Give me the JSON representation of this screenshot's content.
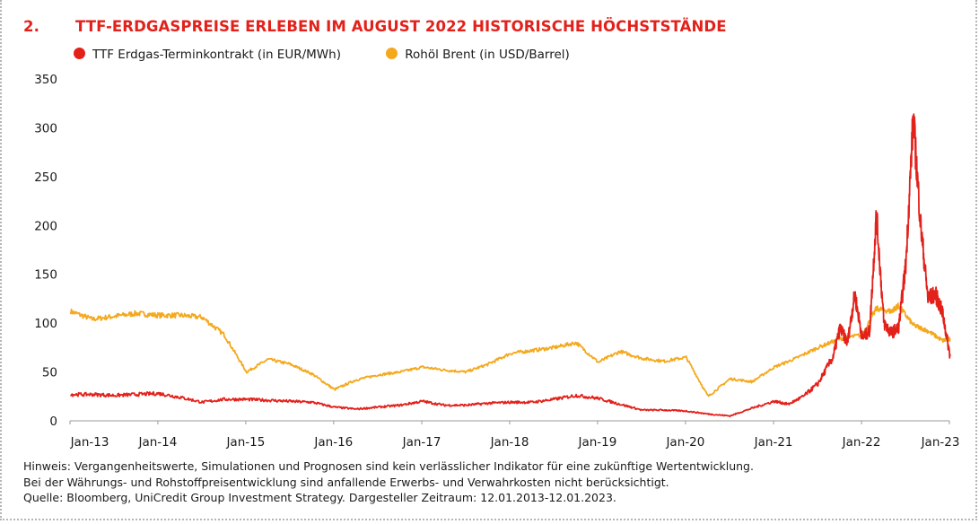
{
  "header": {
    "number": "2.",
    "title": "TTF-ERDGASPREISE ERLEBEN IM AUGUST 2022 HISTORISCHE HÖCHSTSTÄNDE"
  },
  "notes": [
    "Hinweis: Vergangenheitswerte, Simulationen und Prognosen sind kein verlässlicher Indikator für eine zukünftige Wertentwicklung.",
    "Bei der Währungs- und Rohstoffpreisentwicklung sind anfallende Erwerbs- und Verwahrkosten nicht berücksichtigt.",
    "Quelle: Bloomberg, UniCredit Group Investment Strategy. Dargesteller Zeitraum: 12.01.2013-12.01.2023."
  ],
  "chart_data": {
    "type": "line",
    "title": "TTF-ERDGASPREISE ERLEBEN IM AUGUST 2022 HISTORISCHE HÖCHSTSTÄNDE",
    "xlabel": "",
    "ylabel": "",
    "x_range": [
      "2013-01-12",
      "2023-01-12"
    ],
    "ylim": [
      0,
      350
    ],
    "yticks": [
      0,
      50,
      100,
      150,
      200,
      250,
      300,
      350
    ],
    "xtick_labels": [
      "Jan-13",
      "Jan-14",
      "Jan-15",
      "Jan-16",
      "Jan-17",
      "Jan-18",
      "Jan-19",
      "Jan-20",
      "Jan-21",
      "Jan-22",
      "Jan-23"
    ],
    "grid": false,
    "legend_position": "top-left",
    "series": [
      {
        "name": "TTF Erdgas-Terminkontrakt (in EUR/MWh)",
        "color": "#e3211b",
        "x": [
          "2013-01",
          "2013-04",
          "2013-07",
          "2013-10",
          "2014-01",
          "2014-04",
          "2014-07",
          "2014-10",
          "2015-01",
          "2015-04",
          "2015-07",
          "2015-10",
          "2016-01",
          "2016-04",
          "2016-07",
          "2016-10",
          "2017-01",
          "2017-04",
          "2017-07",
          "2017-10",
          "2018-01",
          "2018-04",
          "2018-07",
          "2018-10",
          "2019-01",
          "2019-04",
          "2019-07",
          "2019-10",
          "2020-01",
          "2020-04",
          "2020-07",
          "2020-10",
          "2021-01",
          "2021-03",
          "2021-05",
          "2021-07",
          "2021-09",
          "2021-10",
          "2021-11",
          "2021-12",
          "2022-01",
          "2022-02",
          "2022-03",
          "2022-04",
          "2022-05",
          "2022-06",
          "2022-07",
          "2022-08",
          "2022-09",
          "2022-10",
          "2022-11",
          "2022-12",
          "2023-01"
        ],
        "values": [
          27,
          27,
          26,
          27,
          28,
          24,
          19,
          22,
          22,
          21,
          20,
          19,
          14,
          12,
          14,
          16,
          20,
          16,
          16,
          18,
          19,
          19,
          22,
          26,
          23,
          17,
          11,
          11,
          10,
          7,
          5,
          13,
          20,
          17,
          25,
          38,
          65,
          95,
          80,
          130,
          85,
          92,
          212,
          100,
          90,
          95,
          160,
          310,
          200,
          125,
          130,
          110,
          66
        ]
      },
      {
        "name": "Rohöl Brent (in USD/Barrel)",
        "color": "#f5a81c",
        "x": [
          "2013-01",
          "2013-04",
          "2013-07",
          "2013-10",
          "2014-01",
          "2014-04",
          "2014-07",
          "2014-10",
          "2015-01",
          "2015-04",
          "2015-07",
          "2015-10",
          "2016-01",
          "2016-04",
          "2016-07",
          "2016-10",
          "2017-01",
          "2017-04",
          "2017-07",
          "2017-10",
          "2018-01",
          "2018-04",
          "2018-07",
          "2018-10",
          "2019-01",
          "2019-04",
          "2019-07",
          "2019-10",
          "2020-01",
          "2020-04",
          "2020-07",
          "2020-10",
          "2021-01",
          "2021-04",
          "2021-07",
          "2021-10",
          "2022-01",
          "2022-03",
          "2022-05",
          "2022-06",
          "2022-08",
          "2022-10",
          "2022-12",
          "2023-01"
        ],
        "values": [
          112,
          104,
          107,
          110,
          108,
          108,
          106,
          88,
          50,
          63,
          58,
          48,
          32,
          42,
          47,
          50,
          55,
          52,
          50,
          58,
          69,
          72,
          75,
          80,
          60,
          71,
          64,
          61,
          65,
          25,
          43,
          40,
          55,
          64,
          75,
          84,
          88,
          115,
          112,
          118,
          98,
          92,
          82,
          84
        ]
      }
    ]
  }
}
